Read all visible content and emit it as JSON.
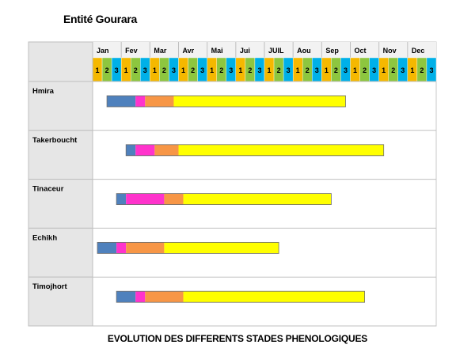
{
  "title": "Entité Gourara",
  "caption": "EVOLUTION DES DIFFERENTS STADES PHENOLOGIQUES",
  "chart_data": {
    "type": "gantt",
    "months": [
      "Jan",
      "Fev",
      "Mar",
      "Avr",
      "Mai",
      "Jui",
      "JUIL",
      "Aou",
      "Sep",
      "Oct",
      "Nov",
      "Dec"
    ],
    "decades": [
      "1",
      "2",
      "3"
    ],
    "decade_colors": [
      "#F5B800",
      "#8DC63F",
      "#00B0E8"
    ],
    "stage_colors": [
      "#4F81BD",
      "#FF33CC",
      "#F79646",
      "#FFFF00"
    ],
    "units": "decade index (0 = Jan decade 1, 36 = end of Dec)",
    "rows": [
      {
        "label": "Hmira",
        "stages": [
          [
            1.5,
            4.5
          ],
          [
            4.5,
            5.5
          ],
          [
            5.5,
            8.5
          ],
          [
            8.5,
            26.5
          ]
        ]
      },
      {
        "label": "Takerboucht",
        "stages": [
          [
            3.5,
            4.5
          ],
          [
            4.5,
            6.5
          ],
          [
            6.5,
            9.0
          ],
          [
            9.0,
            30.5
          ]
        ]
      },
      {
        "label": "Tinaceur",
        "stages": [
          [
            2.5,
            3.5
          ],
          [
            3.5,
            7.5
          ],
          [
            7.5,
            9.5
          ],
          [
            9.5,
            25.0
          ]
        ]
      },
      {
        "label": "Echikh",
        "stages": [
          [
            0.5,
            2.5
          ],
          [
            2.5,
            3.5
          ],
          [
            3.5,
            7.5
          ],
          [
            7.5,
            19.5
          ]
        ]
      },
      {
        "label": "Timojhort",
        "stages": [
          [
            2.5,
            4.5
          ],
          [
            4.5,
            5.5
          ],
          [
            5.5,
            9.5
          ],
          [
            9.5,
            28.5
          ]
        ]
      }
    ]
  }
}
